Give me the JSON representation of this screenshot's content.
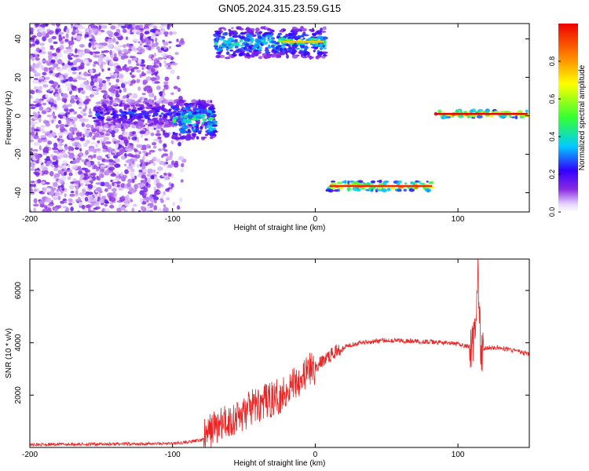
{
  "title": "GN05.2024.315.23.59.G15",
  "colors": {
    "background": "#ffffff",
    "frame": "#000000",
    "snr_line": "#ee2222",
    "colormap": [
      "#ffffff",
      "#8a2be2",
      "#3300ff",
      "#00ccff",
      "#33ff33",
      "#ffff00",
      "#ff6600",
      "#ee0000"
    ]
  },
  "chart_data": [
    {
      "type": "heatmap",
      "xlabel": "Height of straight line (km)",
      "ylabel": "Frequency (Hz)",
      "xlim": [
        -200,
        150
      ],
      "ylim": [
        -50,
        48
      ],
      "xticks": [
        -200,
        -100,
        0,
        100
      ],
      "yticks": [
        -40,
        -20,
        0,
        20,
        40
      ],
      "colorbar": {
        "label": "Normalized spectral amplitude",
        "range": [
          0,
          1
        ],
        "ticks": [
          "0.0",
          "0.2",
          "0.4",
          "0.6",
          "0.8"
        ],
        "tick_values": [
          0,
          0.2,
          0.4,
          0.6,
          0.8
        ]
      },
      "features": [
        {
          "kind": "noise",
          "x": [
            -200,
            -88
          ],
          "y": [
            -50,
            48
          ],
          "amplitude": 0.12
        },
        {
          "kind": "band",
          "x": [
            -155,
            -70
          ],
          "y": [
            -6,
            8
          ],
          "amplitude": 0.25
        },
        {
          "kind": "band",
          "x": [
            -100,
            -70
          ],
          "y": [
            -12,
            8
          ],
          "amplitude": 0.45
        },
        {
          "kind": "band",
          "x": [
            -70,
            7
          ],
          "y": [
            30,
            46
          ],
          "amplitude": 0.4
        },
        {
          "kind": "band",
          "x": [
            -25,
            7
          ],
          "y": [
            36,
            41
          ],
          "amplitude": 0.65
        },
        {
          "kind": "band",
          "x": [
            8,
            83
          ],
          "y": [
            -39,
            -34
          ],
          "amplitude": 0.85
        },
        {
          "kind": "band",
          "x": [
            82,
            150
          ],
          "y": [
            -1,
            3
          ],
          "amplitude": 0.9
        }
      ]
    },
    {
      "type": "line",
      "xlabel": "Height of straight line (km)",
      "ylabel": "SNR (10 * v/v)",
      "xlim": [
        -200,
        150
      ],
      "ylim": [
        0,
        7200
      ],
      "xticks": [
        -200,
        -100,
        0,
        100
      ],
      "yticks": [
        2000,
        4000,
        6000
      ],
      "series": [
        {
          "x": [
            -200,
            -180,
            -160,
            -140,
            -120,
            -100,
            -90,
            -80,
            -76,
            -72,
            -65,
            -60,
            -55,
            -50,
            -45,
            -40,
            -35,
            -30,
            -25,
            -20,
            -15,
            -10,
            -5,
            0,
            5,
            10,
            15,
            20,
            30,
            40,
            50,
            60,
            70,
            80,
            90,
            100,
            105,
            108,
            110,
            112,
            114,
            116,
            118,
            120,
            130,
            140,
            150
          ],
          "y": [
            110,
            120,
            125,
            130,
            140,
            150,
            200,
            280,
            450,
            750,
            900,
            1000,
            1150,
            1300,
            1500,
            1650,
            1750,
            1850,
            1950,
            2200,
            2500,
            2700,
            2900,
            3050,
            3300,
            3500,
            3700,
            3850,
            4000,
            4050,
            4100,
            4080,
            4060,
            4030,
            4000,
            3950,
            3900,
            3850,
            3800,
            4500,
            6700,
            3600,
            3700,
            3820,
            3800,
            3700,
            3550
          ]
        }
      ]
    }
  ]
}
